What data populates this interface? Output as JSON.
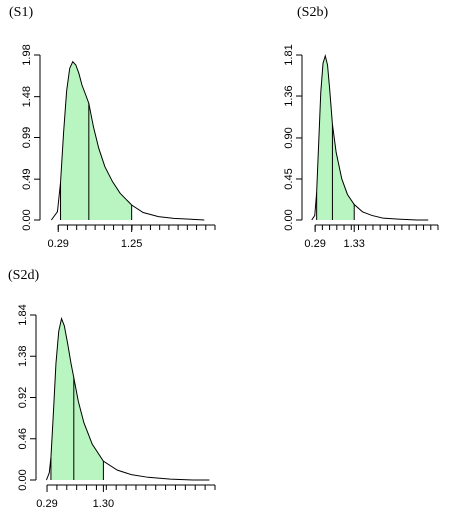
{
  "chart_data": [
    {
      "type": "area",
      "label": "(S1)",
      "y_ticks": [
        0.0,
        0.49,
        0.99,
        1.48,
        1.98
      ],
      "y_tick_labels": [
        "0.00",
        "0.49",
        "0.99",
        "1.48",
        "1.98"
      ],
      "ylim": [
        0,
        1.98
      ],
      "x_tick_labels": [
        "0.29",
        "1.25"
      ],
      "x_labeled_values": [
        0.29,
        1.25
      ],
      "xlim": [
        0.13,
        2.34
      ],
      "minor_tick_count": 18,
      "peak": {
        "x": 0.48,
        "y": 1.9
      },
      "vertical_lines": [
        0.32,
        0.69,
        1.25
      ],
      "shaded_interval": [
        0.32,
        1.25
      ],
      "fill_color": "#b8f5c0",
      "curve": {
        "x": [
          0.2,
          0.28,
          0.32,
          0.36,
          0.4,
          0.44,
          0.48,
          0.52,
          0.56,
          0.6,
          0.65,
          0.69,
          0.75,
          0.82,
          0.9,
          1.0,
          1.1,
          1.25,
          1.4,
          1.6,
          1.8,
          2.0,
          2.2
        ],
        "y": [
          0.0,
          0.1,
          0.45,
          1.05,
          1.55,
          1.82,
          1.9,
          1.86,
          1.76,
          1.62,
          1.5,
          1.4,
          1.12,
          0.86,
          0.64,
          0.46,
          0.32,
          0.18,
          0.09,
          0.04,
          0.02,
          0.01,
          0.0
        ]
      }
    },
    {
      "type": "area",
      "label": "(S2b)",
      "y_ticks": [
        0.0,
        0.45,
        0.9,
        1.36,
        1.81
      ],
      "y_tick_labels": [
        "0.00",
        "0.45",
        "0.90",
        "1.36",
        "1.81"
      ],
      "ylim": [
        0,
        1.81
      ],
      "x_tick_labels": [
        "0.29",
        "1.33"
      ],
      "x_labeled_values": [
        0.29,
        1.33
      ],
      "xlim": [
        0.1,
        3.56
      ],
      "minor_tick_count": 18,
      "peak": {
        "x": 0.56,
        "y": 1.8
      },
      "vertical_lines": [
        0.33,
        0.75,
        1.33
      ],
      "shaded_interval": [
        0.33,
        1.33
      ],
      "fill_color": "#b8f5c0",
      "curve": {
        "x": [
          0.2,
          0.28,
          0.33,
          0.38,
          0.44,
          0.5,
          0.56,
          0.62,
          0.68,
          0.75,
          0.85,
          1.0,
          1.15,
          1.33,
          1.55,
          1.8,
          2.1,
          2.5,
          3.0,
          3.3
        ],
        "y": [
          0.0,
          0.05,
          0.3,
          0.8,
          1.4,
          1.72,
          1.8,
          1.7,
          1.42,
          1.05,
          0.74,
          0.45,
          0.28,
          0.17,
          0.09,
          0.05,
          0.02,
          0.01,
          0.0,
          0.0
        ]
      }
    },
    {
      "type": "area",
      "label": "(S2d)",
      "y_ticks": [
        0.0,
        0.46,
        0.92,
        1.38,
        1.84
      ],
      "y_tick_labels": [
        "0.00",
        "0.46",
        "0.92",
        "1.38",
        "1.84"
      ],
      "ylim": [
        0,
        1.84
      ],
      "x_tick_labels": [
        "0.29",
        "1.30"
      ],
      "x_labeled_values": [
        0.29,
        1.3
      ],
      "xlim": [
        0.2,
        3.3
      ],
      "minor_tick_count": 18,
      "peak": {
        "x": 0.55,
        "y": 1.8
      },
      "vertical_lines": [
        0.36,
        0.77,
        1.3
      ],
      "shaded_interval": [
        0.36,
        1.3
      ],
      "fill_color": "#b8f5c0",
      "curve": {
        "x": [
          0.28,
          0.33,
          0.36,
          0.4,
          0.45,
          0.5,
          0.55,
          0.6,
          0.66,
          0.72,
          0.77,
          0.85,
          0.95,
          1.1,
          1.3,
          1.55,
          1.8,
          2.1,
          2.5,
          2.9,
          3.2
        ],
        "y": [
          0.0,
          0.08,
          0.25,
          0.7,
          1.3,
          1.66,
          1.8,
          1.72,
          1.52,
          1.3,
          1.14,
          0.88,
          0.64,
          0.4,
          0.21,
          0.11,
          0.06,
          0.03,
          0.01,
          0.0,
          0.0
        ]
      }
    }
  ]
}
